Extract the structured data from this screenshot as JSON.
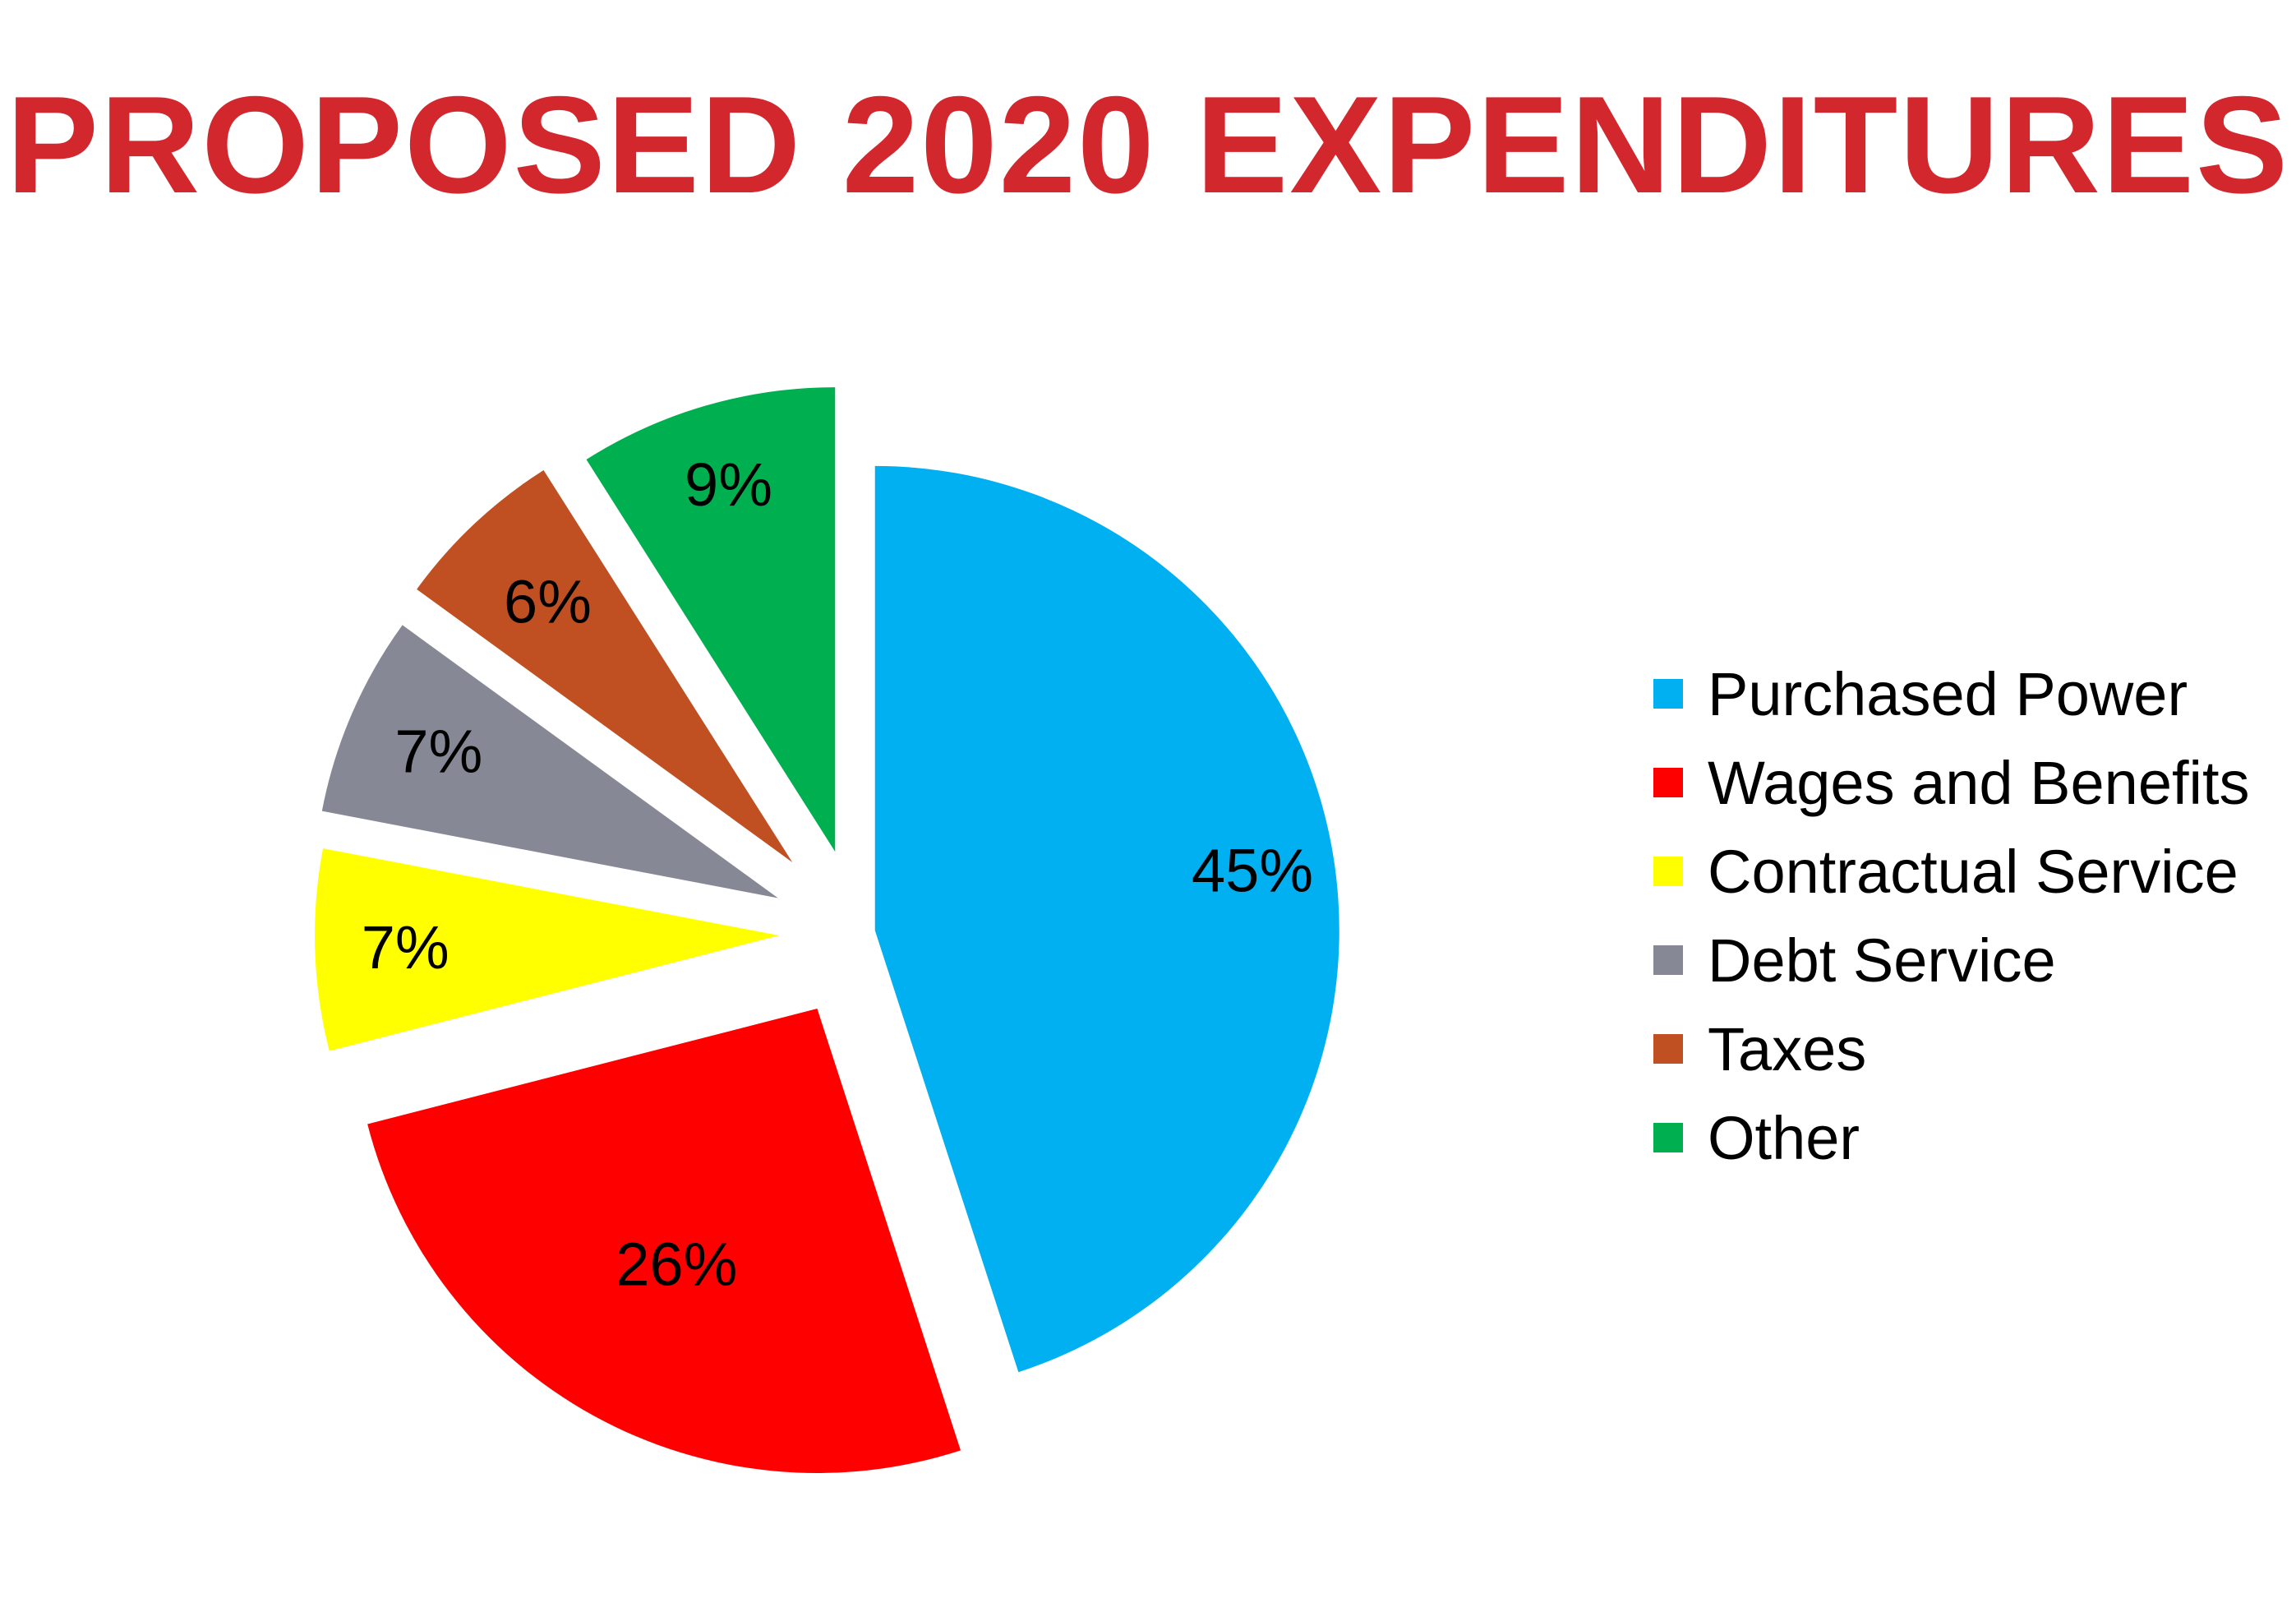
{
  "chart_data": {
    "type": "pie",
    "title": "PROPOSED 2020 EXPENDITURES",
    "legend_position": "right",
    "exploded": true,
    "slices": [
      {
        "name": "Purchased Power",
        "value": 45,
        "label": "45%",
        "color": "#00b0f0"
      },
      {
        "name": "Wages and Benefits",
        "value": 26,
        "label": "26%",
        "color": "#ff0000"
      },
      {
        "name": "Contractual Service",
        "value": 7,
        "label": "7%",
        "color": "#ffff00"
      },
      {
        "name": "Debt Service",
        "value": 7,
        "label": "7%",
        "color": "#878895"
      },
      {
        "name": "Taxes",
        "value": 6,
        "label": "6%",
        "color": "#c04f22"
      },
      {
        "name": "Other",
        "value": 9,
        "label": "9%",
        "color": "#00b050"
      }
    ]
  },
  "colors": {
    "title": "#d3272e"
  }
}
